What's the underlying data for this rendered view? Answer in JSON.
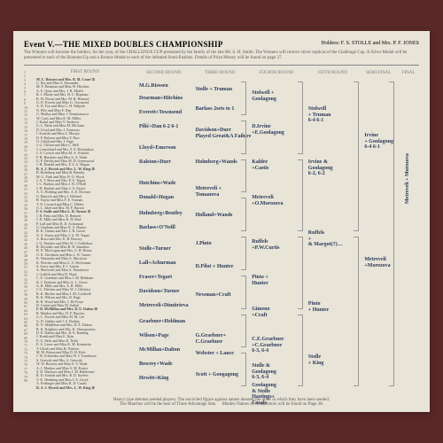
{
  "header": {
    "event_title": "Event V.—THE MIXED DOUBLES CHAMPIONSHIP",
    "holders_label": "Holders: F. S. STOLLE and Mrs. P. F. JONES",
    "blurb": "The Winners will become the holders, for the year, of the CHALLENGE CUP presented by the family of the late Mr. S. H. Smith. The Winners will receive silver replicas of the Challenge Cup. A Silver Medal will be presented to each of the Runners-Up and a Bronze Medal to each of the defeated Semi-finalists. Details of Prize Money will be found on page 37."
  },
  "round_labels": [
    "FIRST ROUND",
    "SECOND ROUND",
    "THIRD ROUND",
    "FOURTH ROUND",
    "FIFTH ROUND",
    "SEMI-FINAL",
    "FINAL"
  ],
  "first_round_pairs": [
    "M. C. Riessen and Mrs. B. M. Court ①",
    "C. Iles and Miss S. Alexander",
    "M. F. Dearman and Miss W. Hitchins",
    "A. E. Quay and Mrs. J. B. Moffit",
    "R. J. Moore and Mrs. H. C. Hopman",
    "R. W. Dixon and Mrs. M. R. Bernard",
    "G. D. Everett and Miss G. Townsend",
    "A. D. Fox and Miss C. H. Walpole",
    "N. Pilić and Miss F. Dan",
    "G. Mulloy and Miss J. Terminassova",
    "W. Caris and Miss E. M. Miller",
    "J. Kukal and Miss V. Suskova",
    "G. L. Paish and Miss M. McAann",
    "D. Lloyd and Mrs. J. Emerson",
    "I. Konishi and Miss S. Moriya",
    "D. P. Ralston and Miss F. Durr",
    "O. Cahill and Mrs. I. Page",
    "J. G. Clifton and Miss C. Bell",
    "J. Carmichael and Mrs. F. S. Richardson",
    "J. A. Crouch and Miss M. A. Schacht",
    "P. R. Hutchins and Miss S. A. Wade",
    "G. P. Devlin and Miss M. D. Greenwood",
    "J. H. Donald and Mrs. F. S. A. Hogan",
    "R. A. J. Hewitt and Mrs. L. W. King ③",
    "R. Holmberg and Miss B. Bentley",
    "M. G. Firth and Miss N. O. Wood",
    "J. A. T. Horn and Mrs. P. A. Tegart",
    "J. C. Barlass and Miss J. B. O'Neill",
    "J. D. Bartlett and Miss J. A. Fayter",
    "A. G. Holding and Mrs. A. E. Devrine",
    "G. Battrick and Miss J. Wieland",
    "R. Taylor and Miss F. E. Truman",
    "T. N. Coward and Miss C. Dibley",
    "G. L. Isbel and Mrs. M. F. Barton",
    "F. S. Stolle and Miss L. R. Turner ②",
    "J. R. Pinto and Mrs. D. Bennett",
    "J. D. Mills and Miss K. H. Bird",
    "P. Lall and Miss R. D. Achurman",
    "G. Grinham and Miss N. A. Hunter",
    "R. K. Timms and Mrs. J. R. Green",
    "N. A. Fraser and Miss J. A. M. Tegart",
    "A. Rossi and Mrs. E. B. Bowrey",
    "J. G. Fancher and Miss W. J. Gulledson",
    "R. Drysdale and Miss R. H. Saunders",
    "B. N. MacLagan and Mrs. G. H. House",
    "O. K. Davidson and Miss L. R. Turner",
    "K. Watanabe and Miss A. Morrison",
    "K. Fletcher and Miss G. A. McLennan",
    "S. Avery and Mrs. P. J. Austin",
    "A. Metreveli and Miss A. Dimitrieva",
    "J. Griffith and Miss D. Hard",
    "C. E. Graebner and Miss J. M. Heldman",
    "K. J. Fairborn and Miss A. L. Owen",
    "A. R. Mills and Mrs. A. R. Mills",
    "J. G. Fletcher and Miss W. J. Gilchrist",
    "B. K. Ritchie and Miss J. M. Cordwell",
    "R. K. Wilson and Mrs. D. Page",
    "B. R. Wood and Mrs. J. De Fraye",
    "D. Contet and Miss M. Salfati",
    "F. D. McMillan and Mrs. D. E. Dalton ④",
    "R. Maiden and Mrs. D. F. Barclay",
    "G. L. Prowle and Miss M. M. Lee",
    "G. D. Oakley and J. S. Drobny",
    "R. N. Middleton and Mrs. D. E. Dalton",
    "R. K. Keighery and Mrs. K. Sharopounos",
    "D. E. Dalton and Mrs. R. E. Barding",
    "J. Konth and Miss E. Ilyin",
    "E. G. Pails and Miss K. Nishi",
    "E. G. Laver and Miss K. M. Krantzcke",
    "T. Ulrich and Miss B. Nielsen",
    "M. M. Ritson and Miss D. H. Rich",
    "J. W. Schroeder and Miss W. J. Tomlinson",
    "S. Grawski and Mrs. S. Grawski",
    "W. W. Bowrey and Miss S. V. Wade",
    "A. J. Martino and Miss S. M. Ernest",
    "S. D. Warboys and Miss J. M. Baldovino",
    "R. D. Sorlein and Mrs. R. D. Sorlein",
    "V. K. Hemberg and Miss J. A. Lloyd",
    "A. Fedtinger and Miss R. D. Casals",
    "R. A. J. Hewitt and Mrs. L. W. King ③"
  ],
  "handwritten": {
    "r2": [
      {
        "t": 14,
        "txt": "M.G.Riessen"
      },
      {
        "t": 28,
        "txt": "Dearman+Hitchins"
      },
      {
        "t": 44,
        "txt": "Everett+Townsend"
      },
      {
        "t": 60,
        "txt": "Pilić+Dan 6-2 6-1"
      },
      {
        "t": 84,
        "txt": "Lloyd+Emerson"
      },
      {
        "t": 100,
        "txt": "Ralston+Durr"
      },
      {
        "t": 124,
        "txt": "Hutchins+Wade"
      },
      {
        "t": 140,
        "txt": "Donald+Hogan"
      },
      {
        "t": 158,
        "txt": "Holmberg+Bentley"
      },
      {
        "t": 174,
        "txt": "Barlass+O'Neill"
      },
      {
        "t": 198,
        "txt": "Stolle+Turner"
      },
      {
        "t": 214,
        "txt": "Lall+Achurman"
      },
      {
        "t": 230,
        "txt": "Fraser+Tegart"
      },
      {
        "t": 246,
        "txt": "Davidson+Turner"
      },
      {
        "t": 262,
        "txt": "Metreveli+Dimitrieva"
      },
      {
        "t": 280,
        "txt": "Graebner+Heldman"
      },
      {
        "t": 296,
        "txt": "Wilson+Page"
      },
      {
        "t": 312,
        "txt": "McMillan+Dalton"
      },
      {
        "t": 328,
        "txt": "Bowrey+Wade"
      },
      {
        "t": 344,
        "txt": "Hewitt+King"
      }
    ],
    "r3": [
      {
        "t": 18,
        "txt": "Stolle + Truman"
      },
      {
        "t": 40,
        "txt": "Barlass 2sets to 1"
      },
      {
        "t": 64,
        "txt": "Davidson+Durr\nPlayed Great&A Failure"
      },
      {
        "t": 100,
        "txt": "Holmberg+Wands"
      },
      {
        "t": 130,
        "txt": "Metreveli +\nTomanova"
      },
      {
        "t": 160,
        "txt": "Holland+Wands"
      },
      {
        "t": 192,
        "txt": "J.Pinto"
      },
      {
        "t": 218,
        "txt": "D.Pilot + Hunter"
      },
      {
        "t": 250,
        "txt": "Newman+Craft"
      },
      {
        "t": 296,
        "txt": "G.Graebner+\nC.Graebner"
      },
      {
        "t": 316,
        "txt": "Webster + Lance"
      },
      {
        "t": 340,
        "txt": "Scott + Googagong"
      }
    ],
    "r4": [
      {
        "t": 22,
        "txt": "Stolwell +\nGoolagong"
      },
      {
        "t": 60,
        "txt": "D.Irvine\n+E.Goolagong"
      },
      {
        "t": 100,
        "txt": "Kaldre\n+Castis"
      },
      {
        "t": 140,
        "txt": "Metreveli\n+O.Morozova"
      },
      {
        "t": 190,
        "txt": "Ruffels\n+P.W.Curtis"
      },
      {
        "t": 230,
        "txt": "Pinto +\nHunter"
      },
      {
        "t": 266,
        "txt": "Gimeno\n+Craft"
      },
      {
        "t": 300,
        "txt": "C.E.Graebner\n+C.Graebner\n6-3, 6-4"
      },
      {
        "t": 330,
        "txt": "Stolle &\nGoolagong\n6-3, 6-4"
      },
      {
        "t": 352,
        "txt": "Goolagong\n& Stolle\nHastings+\nCasals"
      }
    ],
    "r5": [
      {
        "t": 40,
        "txt": "Stolwell\n+ Truman\n6-4 6-1"
      },
      {
        "t": 100,
        "txt": "Irvine &\nGoolagong\n6-2, 6-2"
      },
      {
        "t": 180,
        "txt": "Ruffels\n+\n& Margot(?)…"
      },
      {
        "t": 260,
        "txt": "Pinto\n+ Hunter"
      },
      {
        "t": 320,
        "txt": "Stolle\n+ King"
      }
    ],
    "semi": [
      {
        "t": 70,
        "txt": "Irvine\n+ Goolagong\n6-4 6-1"
      },
      {
        "t": 210,
        "txt": "Metreveli\n+Morozova"
      }
    ],
    "final": [
      {
        "t": 150,
        "txt": "Metreveli + Morozova"
      }
    ]
  },
  "footer": {
    "line1": "Heavy type denotes seeded players.  The encircled figure against names denotes the order in which they have been seeded.",
    "line2": "The Matches will be the best of Three Advantage Sets.",
    "line3": "Maiden Names of Competitors will be found on Page 38."
  },
  "colors": {
    "page_bg": "#e8e4d8",
    "backdrop": "#5a2828",
    "ink": "#2a3a5a",
    "rule": "#999"
  }
}
